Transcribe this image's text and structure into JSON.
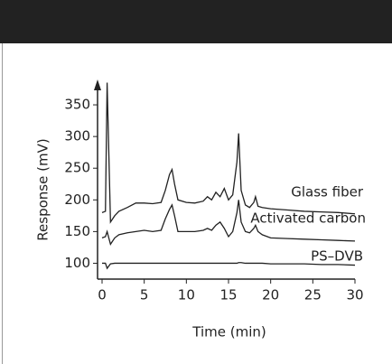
{
  "chart_data": {
    "type": "line",
    "x_label": "Time (min)",
    "y_label": "Response (mV)",
    "x": [
      0,
      0.4,
      0.6,
      1,
      1.5,
      2,
      3,
      4,
      5,
      6,
      7,
      7.5,
      8,
      8.3,
      8.6,
      9,
      10,
      11,
      12,
      12.5,
      13,
      13.5,
      14,
      14.5,
      15,
      15.5,
      16,
      16.2,
      16.5,
      17,
      17.5,
      18,
      18.2,
      18.5,
      19,
      20,
      22,
      24,
      26,
      28,
      30
    ],
    "series": [
      {
        "name": "Glass fiber",
        "color": "#222222",
        "values": [
          180,
          182,
          385,
          165,
          175,
          182,
          188,
          195,
          195,
          194,
          196,
          215,
          240,
          248,
          225,
          200,
          196,
          195,
          198,
          205,
          200,
          212,
          205,
          218,
          200,
          208,
          260,
          305,
          215,
          192,
          188,
          196,
          205,
          190,
          188,
          186,
          184,
          182,
          181,
          180,
          178
        ]
      },
      {
        "name": "Activated carbon",
        "color": "#222222",
        "values": [
          140,
          142,
          150,
          130,
          140,
          145,
          148,
          150,
          152,
          150,
          152,
          170,
          185,
          192,
          175,
          150,
          150,
          150,
          152,
          155,
          152,
          160,
          165,
          155,
          142,
          150,
          180,
          200,
          165,
          150,
          148,
          155,
          160,
          150,
          145,
          140,
          139,
          138,
          137,
          136,
          135
        ]
      },
      {
        "name": "PS–DVB",
        "color": "#222222",
        "values": [
          100,
          100,
          92,
          99,
          100,
          100,
          100,
          100,
          100,
          100,
          100,
          100,
          100,
          100,
          100,
          100,
          100,
          100,
          100,
          100,
          100,
          100,
          100,
          100,
          100,
          100,
          100,
          101,
          101,
          100,
          100,
          100,
          100,
          100,
          100,
          99,
          99,
          99,
          98,
          98,
          97
        ]
      }
    ],
    "xlim": [
      0,
      30
    ],
    "xticks": [
      0,
      5,
      10,
      15,
      20,
      25,
      30
    ],
    "ylim": [
      75,
      390
    ],
    "yticks": [
      100,
      150,
      200,
      250,
      300,
      350
    ]
  }
}
